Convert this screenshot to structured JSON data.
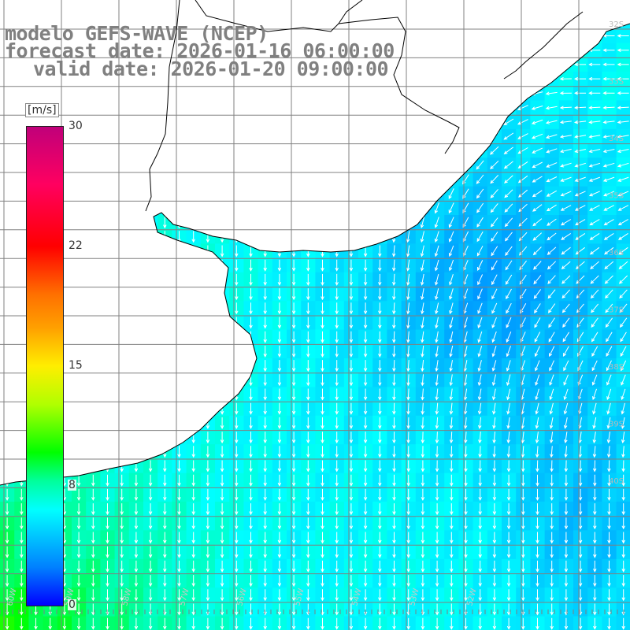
{
  "title": {
    "line1": "modelo GEFS-WAVE (NCEP)",
    "line2": "forecast date: 2026-01-16 06:00:00",
    "line3": "valid date: 2026-01-20 09:00:00"
  },
  "colorbar": {
    "units": "[m/s]",
    "ticks": [
      "30",
      "22",
      "15",
      "8",
      "0"
    ],
    "colors": [
      "#0000ff",
      "#0080ff",
      "#00c0ff",
      "#00ffff",
      "#00ff9c",
      "#00ff00",
      "#b0ff00",
      "#ffee00",
      "#ff7000",
      "#ff0000",
      "#c0007a"
    ]
  },
  "map": {
    "lat_labels": [
      "32S",
      "33S",
      "34S",
      "35S",
      "36S",
      "37S",
      "38S",
      "39S",
      "40S"
    ],
    "lon_labels": [
      "60W",
      "59W",
      "58W",
      "57W",
      "56W",
      "55W",
      "54W",
      "53W",
      "52W"
    ],
    "land_color": "#ffffff",
    "grid_color": "#808080",
    "coast_color": "#000000",
    "arrow_color": "#ffffff"
  }
}
